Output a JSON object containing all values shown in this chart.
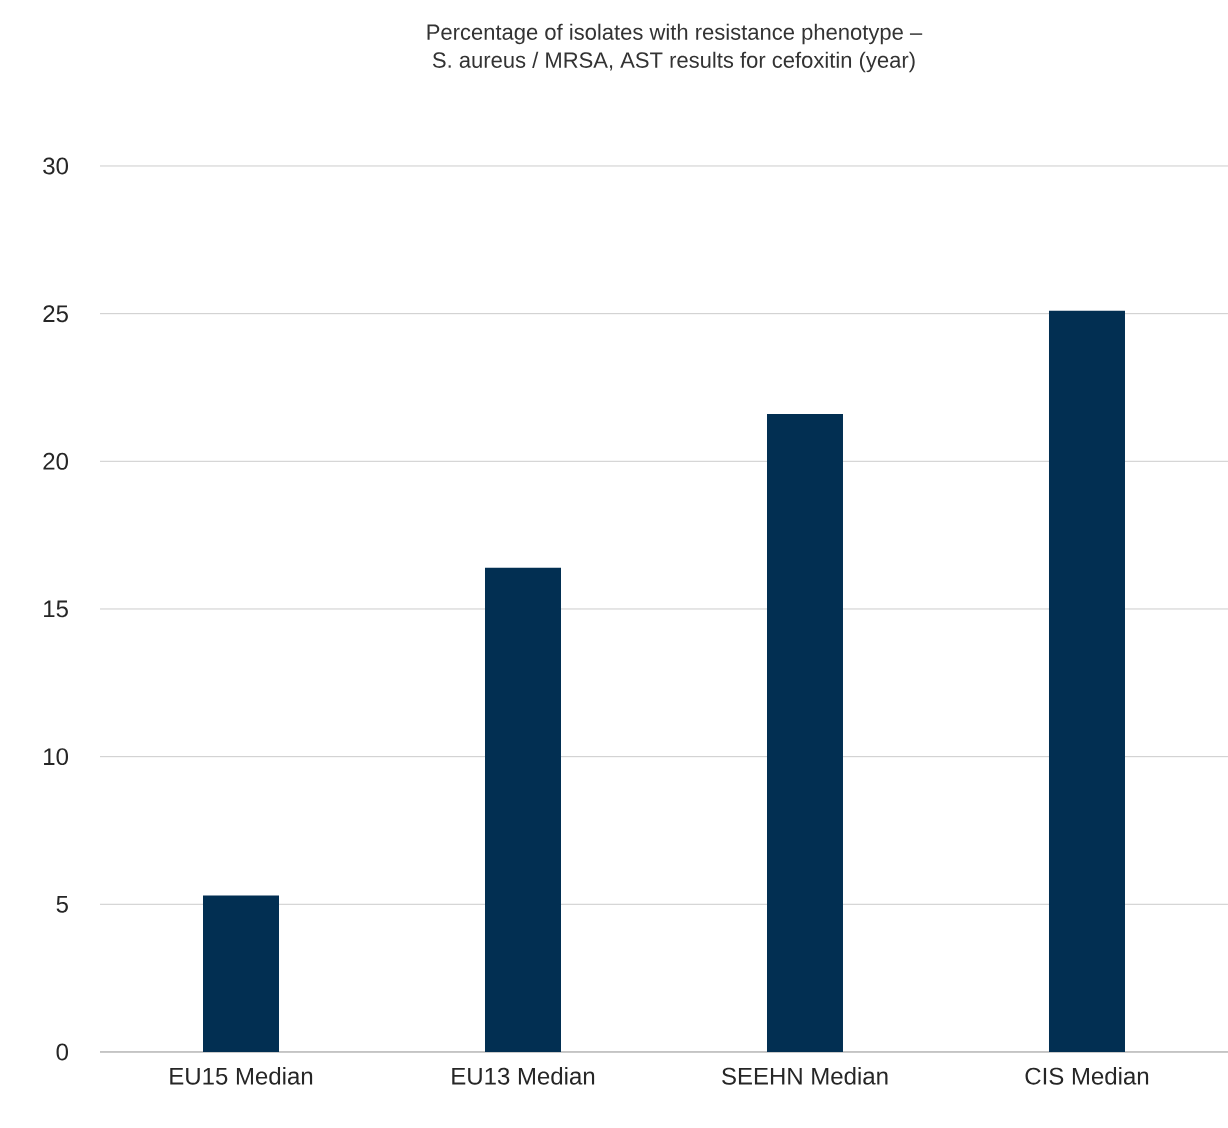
{
  "chart_data": {
    "type": "bar",
    "title": "Percentage of isolates with resistance phenotype –\nS. aureus / MRSA, AST results for cefoxitin (year)",
    "categories": [
      "EU15 Median",
      "EU13 Median",
      "SEEHN Median",
      "CIS Median"
    ],
    "values": [
      5.3,
      16.4,
      21.6,
      25.1
    ],
    "color": "#022f52",
    "ylim": [
      0,
      30
    ],
    "yticks": [
      0,
      5,
      10,
      15,
      20,
      25,
      30
    ],
    "grid": "y"
  }
}
